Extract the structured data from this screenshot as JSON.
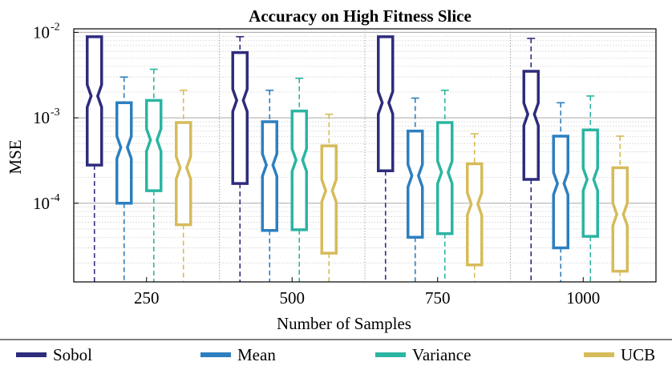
{
  "chart_data": {
    "type": "box",
    "title": "Accuracy on High Fitness Slice",
    "xlabel": "Number of Samples",
    "ylabel": "MSE",
    "yscale": "log",
    "ylim": [
      1.2e-05,
      0.011
    ],
    "yticks": [
      {
        "value": 0.01,
        "base": "10",
        "exp": "-2"
      },
      {
        "value": 0.001,
        "base": "10",
        "exp": "-3"
      },
      {
        "value": 0.0001,
        "base": "10",
        "exp": "-4"
      }
    ],
    "categories": [
      "250",
      "500",
      "750",
      "1000"
    ],
    "grid": true,
    "notched": true,
    "legend_position": "bottom",
    "series": [
      {
        "name": "Sobol",
        "color": "#2e2c7c",
        "boxes": [
          {
            "whislo": 1.2e-05,
            "q1": 0.00028,
            "median": 0.0018,
            "q3": 0.0089,
            "whishi": 0.0089
          },
          {
            "whislo": 1.2e-05,
            "q1": 0.00017,
            "median": 0.0016,
            "q3": 0.0058,
            "whishi": 0.0089
          },
          {
            "whislo": 1.2e-05,
            "q1": 0.00024,
            "median": 0.0015,
            "q3": 0.0089,
            "whishi": 0.0089
          },
          {
            "whislo": 1.2e-05,
            "q1": 0.00019,
            "median": 0.0011,
            "q3": 0.0035,
            "whishi": 0.0085
          }
        ]
      },
      {
        "name": "Mean",
        "color": "#2d7fbf",
        "boxes": [
          {
            "whislo": 1.2e-05,
            "q1": 0.0001,
            "median": 0.00045,
            "q3": 0.0015,
            "whishi": 0.003
          },
          {
            "whislo": 1.2e-05,
            "q1": 4.8e-05,
            "median": 0.00028,
            "q3": 0.0009,
            "whishi": 0.0021
          },
          {
            "whislo": 1.2e-05,
            "q1": 4e-05,
            "median": 0.00021,
            "q3": 0.0007,
            "whishi": 0.0017
          },
          {
            "whislo": 1.2e-05,
            "q1": 3e-05,
            "median": 0.00017,
            "q3": 0.00061,
            "whishi": 0.0015
          }
        ]
      },
      {
        "name": "Variance",
        "color": "#2bb5a2",
        "boxes": [
          {
            "whislo": 1.2e-05,
            "q1": 0.00014,
            "median": 0.00055,
            "q3": 0.0016,
            "whishi": 0.0037
          },
          {
            "whislo": 1.2e-05,
            "q1": 4.9e-05,
            "median": 0.00032,
            "q3": 0.0012,
            "whishi": 0.0029
          },
          {
            "whislo": 1.2e-05,
            "q1": 4.4e-05,
            "median": 0.00023,
            "q3": 0.00088,
            "whishi": 0.0021
          },
          {
            "whislo": 1.2e-05,
            "q1": 4.1e-05,
            "median": 0.00019,
            "q3": 0.00072,
            "whishi": 0.0018
          }
        ]
      },
      {
        "name": "UCB",
        "color": "#d6bb5a",
        "boxes": [
          {
            "whislo": 1.2e-05,
            "q1": 5.6e-05,
            "median": 0.00026,
            "q3": 0.00088,
            "whishi": 0.0021
          },
          {
            "whislo": 1.2e-05,
            "q1": 2.6e-05,
            "median": 0.00014,
            "q3": 0.00047,
            "whishi": 0.0011
          },
          {
            "whislo": 1.2e-05,
            "q1": 1.9e-05,
            "median": 9.8e-05,
            "q3": 0.00029,
            "whishi": 0.00065
          },
          {
            "whislo": 1.2e-05,
            "q1": 1.6e-05,
            "median": 7.4e-05,
            "q3": 0.00026,
            "whishi": 0.00061
          }
        ]
      }
    ]
  }
}
